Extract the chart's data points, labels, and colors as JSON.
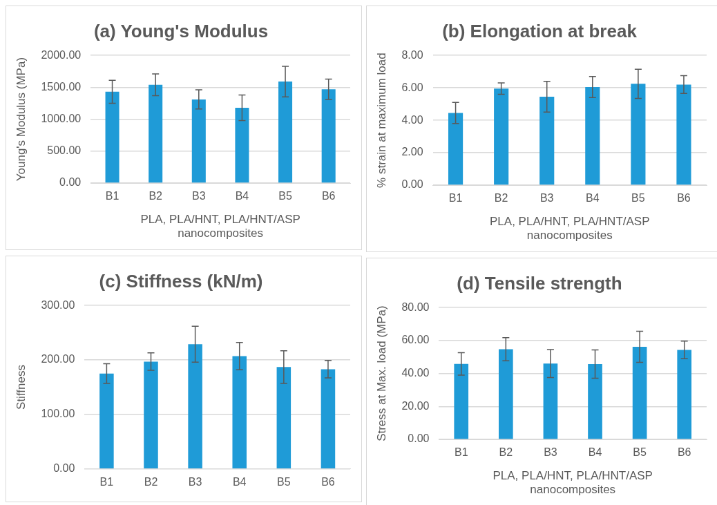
{
  "chart_data": [
    {
      "type": "bar",
      "title": "(a) Young's Modulus",
      "ylabel": "Young's Modulus (MPa)",
      "xlabel": "PLA, PLA/HNT, PLA/HNT/ASP nanocomposites",
      "categories": [
        "B1",
        "B2",
        "B3",
        "B4",
        "B5",
        "B6"
      ],
      "values": [
        1430,
        1540,
        1310,
        1180,
        1590,
        1470
      ],
      "errors": [
        180,
        170,
        150,
        200,
        240,
        160
      ],
      "color": "#1f9bd7",
      "ylim": [
        0,
        2000
      ],
      "yticks": [
        {
          "value": 0,
          "label": "0.00"
        },
        {
          "value": 500,
          "label": "500.00"
        },
        {
          "value": 1000,
          "label": "1000.00"
        },
        {
          "value": 1500,
          "label": "1500.00"
        },
        {
          "value": 2000,
          "label": "2000.00"
        }
      ],
      "grid": "y"
    },
    {
      "type": "bar",
      "title": "(b) Elongation at break",
      "ylabel": "% strain at maximum load",
      "xlabel": "PLA, PLA/HNT, PLA/HNT/ASP nanocomposites",
      "categories": [
        "B1",
        "B2",
        "B3",
        "B4",
        "B5",
        "B6"
      ],
      "values": [
        4.45,
        5.95,
        5.45,
        6.05,
        6.25,
        6.2
      ],
      "errors": [
        0.65,
        0.35,
        0.95,
        0.65,
        0.9,
        0.55
      ],
      "color": "#1f9bd7",
      "ylim": [
        0,
        8
      ],
      "yticks": [
        {
          "value": 0,
          "label": "0.00"
        },
        {
          "value": 2,
          "label": "2.00"
        },
        {
          "value": 4,
          "label": "4.00"
        },
        {
          "value": 6,
          "label": "6.00"
        },
        {
          "value": 8,
          "label": "8.00"
        }
      ],
      "grid": "y"
    },
    {
      "type": "bar",
      "title": "(c) Stiffness (kN/m)",
      "ylabel": "Stiffness",
      "categories": [
        "B1",
        "B2",
        "B3",
        "B4",
        "B5",
        "B6"
      ],
      "values": [
        175,
        197,
        229,
        207,
        187,
        183
      ],
      "errors": [
        18,
        16,
        33,
        25,
        30,
        16
      ],
      "color": "#1f9bd7",
      "ylim": [
        0,
        300
      ],
      "yticks": [
        {
          "value": 0,
          "label": "0.00"
        },
        {
          "value": 100,
          "label": "100.00"
        },
        {
          "value": 200,
          "label": "200.00"
        },
        {
          "value": 300,
          "label": "300.00"
        }
      ],
      "grid": "y"
    },
    {
      "type": "bar",
      "title": "(d) Tensile strength",
      "ylabel": "Stress at Max. load (MPa)",
      "xlabel": "PLA, PLA/HNT, PLA/HNT/ASP nanocomposites",
      "categories": [
        "B1",
        "B2",
        "B3",
        "B4",
        "B5",
        "B6"
      ],
      "values": [
        45.8,
        54.7,
        46,
        45.7,
        56.2,
        54.3
      ],
      "errors": [
        6.8,
        7,
        8.5,
        8.6,
        9.4,
        5.3
      ],
      "color": "#1f9bd7",
      "ylim": [
        0,
        80
      ],
      "yticks": [
        {
          "value": 0,
          "label": "0.00"
        },
        {
          "value": 20,
          "label": "20.00"
        },
        {
          "value": 40,
          "label": "40.00"
        },
        {
          "value": 60,
          "label": "60.00"
        },
        {
          "value": 80,
          "label": "80.00"
        }
      ],
      "grid": "y"
    }
  ]
}
